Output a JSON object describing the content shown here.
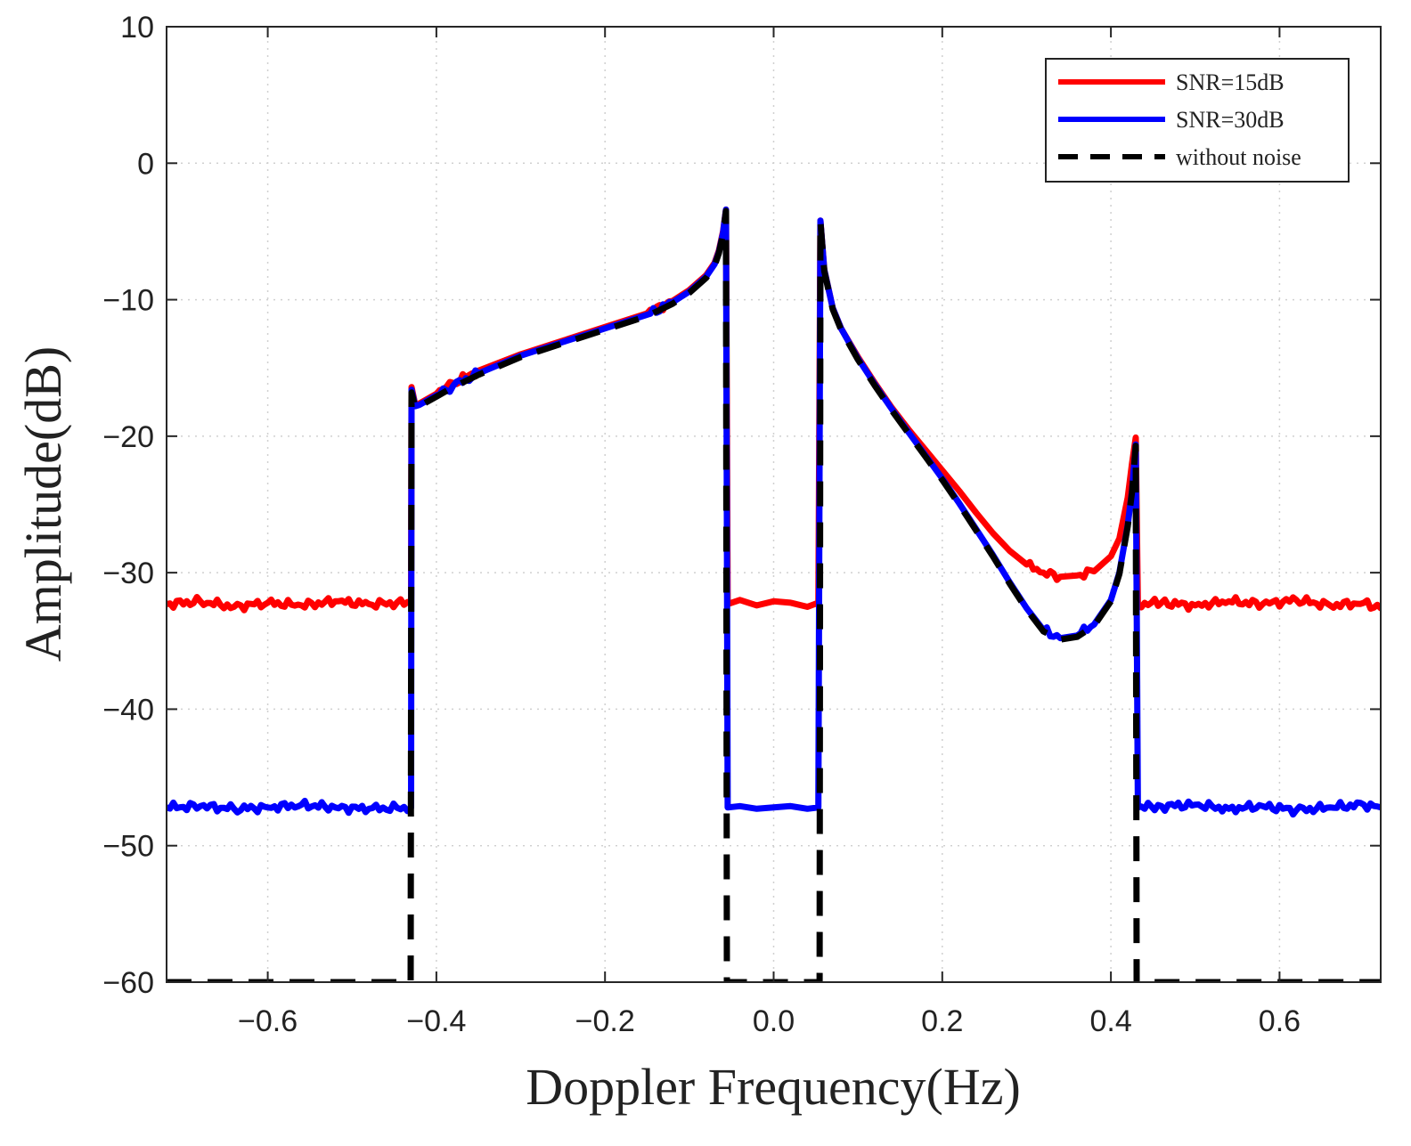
{
  "chart_data": {
    "type": "line",
    "title": "",
    "xlabel": "Doppler Frequency(Hz)",
    "ylabel": "Amplitude(dB)",
    "xlim": [
      -0.72,
      0.72
    ],
    "ylim": [
      -60,
      10
    ],
    "x_ticks": [
      -0.6,
      -0.4,
      -0.2,
      0.0,
      0.2,
      0.4,
      0.6
    ],
    "x_tick_labels": [
      "−0.6",
      "−0.4",
      "−0.2",
      "0.0",
      "0.2",
      "0.4",
      "0.6"
    ],
    "y_ticks": [
      10,
      0,
      -10,
      -20,
      -30,
      -40,
      -50,
      -60
    ],
    "y_tick_labels": [
      "10",
      "0",
      "−10",
      "−20",
      "−30",
      "−40",
      "−50",
      "−60"
    ],
    "grid": true,
    "legend_position": "top-right",
    "series": [
      {
        "name": "SNR=15dB",
        "color": "#ff0000",
        "style": "solid",
        "points": [
          [
            -0.72,
            -32.3
          ],
          [
            -0.68,
            -32.1
          ],
          [
            -0.64,
            -32.5
          ],
          [
            -0.6,
            -32.2
          ],
          [
            -0.56,
            -32.4
          ],
          [
            -0.52,
            -32.1
          ],
          [
            -0.48,
            -32.3
          ],
          [
            -0.43,
            -32.2
          ],
          [
            -0.4295,
            -16.4
          ],
          [
            -0.425,
            -17.7
          ],
          [
            -0.42,
            -17.6
          ],
          [
            -0.4,
            -16.9
          ],
          [
            -0.38,
            -16.1
          ],
          [
            -0.35,
            -15.2
          ],
          [
            -0.3,
            -14.0
          ],
          [
            -0.25,
            -13.0
          ],
          [
            -0.2,
            -12.0
          ],
          [
            -0.15,
            -11.0
          ],
          [
            -0.12,
            -10.1
          ],
          [
            -0.1,
            -9.3
          ],
          [
            -0.08,
            -8.2
          ],
          [
            -0.07,
            -7.3
          ],
          [
            -0.065,
            -6.4
          ],
          [
            -0.06,
            -5.0
          ],
          [
            -0.0565,
            -3.4
          ],
          [
            -0.0545,
            -32.3
          ],
          [
            -0.04,
            -32.0
          ],
          [
            -0.02,
            -32.4
          ],
          [
            0.0,
            -32.1
          ],
          [
            0.02,
            -32.2
          ],
          [
            0.04,
            -32.5
          ],
          [
            0.053,
            -32.2
          ],
          [
            0.0555,
            -4.2
          ],
          [
            0.06,
            -7.8
          ],
          [
            0.07,
            -10.6
          ],
          [
            0.08,
            -12.1
          ],
          [
            0.1,
            -14.2
          ],
          [
            0.12,
            -16.1
          ],
          [
            0.14,
            -17.9
          ],
          [
            0.16,
            -19.5
          ],
          [
            0.18,
            -21.0
          ],
          [
            0.2,
            -22.5
          ],
          [
            0.22,
            -24.0
          ],
          [
            0.24,
            -25.6
          ],
          [
            0.26,
            -27.1
          ],
          [
            0.28,
            -28.4
          ],
          [
            0.3,
            -29.4
          ],
          [
            0.32,
            -30.0
          ],
          [
            0.34,
            -30.3
          ],
          [
            0.36,
            -30.2
          ],
          [
            0.38,
            -29.9
          ],
          [
            0.4,
            -28.8
          ],
          [
            0.41,
            -27.5
          ],
          [
            0.42,
            -24.5
          ],
          [
            0.425,
            -22.0
          ],
          [
            0.4295,
            -20.1
          ],
          [
            0.432,
            -32.3
          ],
          [
            0.46,
            -32.2
          ],
          [
            0.5,
            -32.4
          ],
          [
            0.54,
            -32.1
          ],
          [
            0.58,
            -32.3
          ],
          [
            0.62,
            -32.0
          ],
          [
            0.66,
            -32.4
          ],
          [
            0.7,
            -32.2
          ],
          [
            0.72,
            -32.6
          ]
        ]
      },
      {
        "name": "SNR=30dB",
        "color": "#0000ff",
        "style": "solid",
        "points": [
          [
            -0.72,
            -47.2
          ],
          [
            -0.68,
            -47.1
          ],
          [
            -0.64,
            -47.3
          ],
          [
            -0.6,
            -47.2
          ],
          [
            -0.56,
            -47.0
          ],
          [
            -0.52,
            -47.2
          ],
          [
            -0.48,
            -47.3
          ],
          [
            -0.43,
            -47.2
          ],
          [
            -0.4295,
            -16.6
          ],
          [
            -0.425,
            -17.8
          ],
          [
            -0.42,
            -17.7
          ],
          [
            -0.4,
            -17.0
          ],
          [
            -0.38,
            -16.3
          ],
          [
            -0.35,
            -15.4
          ],
          [
            -0.3,
            -14.1
          ],
          [
            -0.25,
            -13.1
          ],
          [
            -0.2,
            -12.1
          ],
          [
            -0.15,
            -11.1
          ],
          [
            -0.12,
            -10.2
          ],
          [
            -0.1,
            -9.4
          ],
          [
            -0.08,
            -8.3
          ],
          [
            -0.07,
            -7.4
          ],
          [
            -0.065,
            -6.5
          ],
          [
            -0.06,
            -5.1
          ],
          [
            -0.0565,
            -3.4
          ],
          [
            -0.0545,
            -47.2
          ],
          [
            -0.04,
            -47.1
          ],
          [
            -0.02,
            -47.3
          ],
          [
            0.0,
            -47.2
          ],
          [
            0.02,
            -47.1
          ],
          [
            0.04,
            -47.3
          ],
          [
            0.053,
            -47.2
          ],
          [
            0.0555,
            -4.2
          ],
          [
            0.06,
            -7.8
          ],
          [
            0.07,
            -10.6
          ],
          [
            0.08,
            -12.1
          ],
          [
            0.1,
            -14.3
          ],
          [
            0.12,
            -16.2
          ],
          [
            0.14,
            -18.0
          ],
          [
            0.16,
            -19.7
          ],
          [
            0.18,
            -21.4
          ],
          [
            0.2,
            -23.1
          ],
          [
            0.22,
            -24.9
          ],
          [
            0.24,
            -26.8
          ],
          [
            0.26,
            -28.7
          ],
          [
            0.28,
            -30.7
          ],
          [
            0.3,
            -32.6
          ],
          [
            0.32,
            -34.2
          ],
          [
            0.34,
            -34.8
          ],
          [
            0.36,
            -34.6
          ],
          [
            0.38,
            -33.8
          ],
          [
            0.4,
            -32.0
          ],
          [
            0.41,
            -30.0
          ],
          [
            0.42,
            -26.5
          ],
          [
            0.425,
            -24.0
          ],
          [
            0.4295,
            -20.6
          ],
          [
            0.432,
            -47.2
          ],
          [
            0.46,
            -47.1
          ],
          [
            0.5,
            -47.0
          ],
          [
            0.54,
            -47.3
          ],
          [
            0.58,
            -47.1
          ],
          [
            0.62,
            -47.4
          ],
          [
            0.66,
            -47.2
          ],
          [
            0.7,
            -47.0
          ],
          [
            0.72,
            -47.2
          ]
        ]
      },
      {
        "name": "without noise",
        "color": "#000000",
        "style": "dashed",
        "points": [
          [
            -0.72,
            -60
          ],
          [
            -0.4305,
            -60
          ],
          [
            -0.4295,
            -16.8
          ],
          [
            -0.425,
            -17.9
          ],
          [
            -0.42,
            -17.8
          ],
          [
            -0.4,
            -17.1
          ],
          [
            -0.38,
            -16.4
          ],
          [
            -0.35,
            -15.5
          ],
          [
            -0.3,
            -14.2
          ],
          [
            -0.25,
            -13.2
          ],
          [
            -0.2,
            -12.2
          ],
          [
            -0.15,
            -11.2
          ],
          [
            -0.12,
            -10.3
          ],
          [
            -0.1,
            -9.5
          ],
          [
            -0.08,
            -8.4
          ],
          [
            -0.07,
            -7.5
          ],
          [
            -0.065,
            -6.6
          ],
          [
            -0.06,
            -5.2
          ],
          [
            -0.0565,
            -3.5
          ],
          [
            -0.0555,
            -60
          ],
          [
            0.0545,
            -60
          ],
          [
            0.0555,
            -4.3
          ],
          [
            0.06,
            -7.9
          ],
          [
            0.07,
            -10.7
          ],
          [
            0.08,
            -12.2
          ],
          [
            0.1,
            -14.4
          ],
          [
            0.12,
            -16.3
          ],
          [
            0.14,
            -18.1
          ],
          [
            0.16,
            -19.8
          ],
          [
            0.18,
            -21.5
          ],
          [
            0.2,
            -23.2
          ],
          [
            0.22,
            -25.0
          ],
          [
            0.24,
            -26.9
          ],
          [
            0.26,
            -28.8
          ],
          [
            0.28,
            -30.8
          ],
          [
            0.3,
            -32.7
          ],
          [
            0.32,
            -34.3
          ],
          [
            0.34,
            -34.9
          ],
          [
            0.36,
            -34.7
          ],
          [
            0.38,
            -33.9
          ],
          [
            0.4,
            -32.1
          ],
          [
            0.41,
            -30.1
          ],
          [
            0.42,
            -26.6
          ],
          [
            0.425,
            -24.1
          ],
          [
            0.4295,
            -20.7
          ],
          [
            0.4305,
            -60
          ],
          [
            0.72,
            -60
          ]
        ]
      }
    ]
  }
}
